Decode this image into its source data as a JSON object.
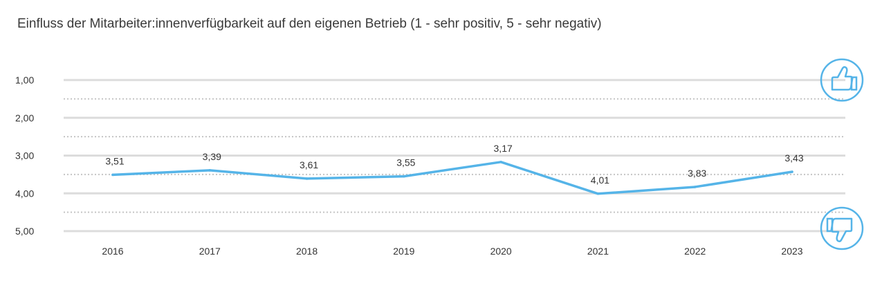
{
  "chart_data": {
    "type": "line",
    "title": "Einfluss der Mitarbeiter:innenverfügbarkeit auf den eigenen Betrieb (1 - sehr positiv, 5 - sehr negativ)",
    "categories": [
      "2016",
      "2017",
      "2018",
      "2019",
      "2020",
      "2021",
      "2022",
      "2023"
    ],
    "series": [
      {
        "values": [
          3.51,
          3.39,
          3.61,
          3.55,
          3.17,
          4.01,
          3.83,
          3.43
        ],
        "labels": [
          "3,51",
          "3,39",
          "3,61",
          "3,55",
          "3,17",
          "4,01",
          "3,83",
          "3,43"
        ]
      }
    ],
    "ylim": [
      1,
      5
    ],
    "y_inverted": true,
    "y_ticks": [
      1,
      2,
      3,
      4,
      5
    ],
    "y_tick_labels": [
      "1,00",
      "2,00",
      "3,00",
      "4,00",
      "5,00"
    ],
    "grid": true,
    "line_color": "#55b4e8",
    "icons": {
      "top": "thumbs-up-icon",
      "bottom": "thumbs-down-icon"
    }
  }
}
